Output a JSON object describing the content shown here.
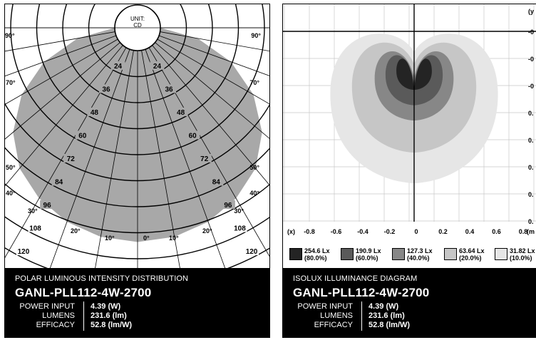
{
  "polar": {
    "unit_line1": "UNIT:",
    "unit_line2": "CD",
    "angle_labels": [
      "90°",
      "90°",
      "70°",
      "70°",
      "50°",
      "50°",
      "40°",
      "40°",
      "30°",
      "30°",
      "20°",
      "20°",
      "10°",
      "10°",
      "0°"
    ],
    "ring_labels": [
      "24",
      "36",
      "48",
      "60",
      "72",
      "84",
      "96",
      "108",
      "120"
    ],
    "chart_data": {
      "type": "polar",
      "unit": "CD",
      "rings": [
        24,
        36,
        48,
        60,
        72,
        84,
        96,
        108,
        120
      ],
      "angles_deg": [
        0,
        10,
        20,
        30,
        40,
        50,
        60,
        70,
        80,
        90
      ],
      "intensity_cd": [
        100,
        99,
        96,
        91,
        84,
        73,
        58,
        40,
        20,
        0
      ],
      "fill_color": "#a8a8a8"
    },
    "info": {
      "type": "POLAR LUMINOUS INTENSITY DISTRIBUTION",
      "model": "GANL-PLL112-4W-2700",
      "power_label": "POWER INPUT",
      "power_value": "4.39 (W)",
      "lumens_label": "LUMENS",
      "lumens_value": "231.6 (lm)",
      "efficacy_label": "EFFICACY",
      "efficacy_value": "52.8 (lm/W)"
    }
  },
  "isolux": {
    "chart_data": {
      "type": "heatmap",
      "x_label": "(x)",
      "y_label": "(y",
      "x_unit": "(m",
      "x_ticks": [
        "-0.8",
        "-0.6",
        "-0.4",
        "-0.2",
        "0",
        "0.2",
        "0.4",
        "0.6",
        "0.8"
      ],
      "y_ticks": [
        "-0",
        "-0",
        "-0",
        "0.",
        "0.",
        "0.",
        "0.",
        "0."
      ],
      "levels": [
        {
          "lux": "31.82 Lx",
          "pct": "(10.0%)",
          "color": "#e6e6e6",
          "radius": 0.85
        },
        {
          "lux": "63.64 Lx",
          "pct": "(20.0%)",
          "color": "#c6c6c6",
          "radius": 0.63
        },
        {
          "lux": "127.3 Lx",
          "pct": "(40.0%)",
          "color": "#878787",
          "radius": 0.4
        },
        {
          "lux": "190.9  Lx",
          "pct": "(60.0%)",
          "color": "#5a5a5a",
          "radius": 0.29
        },
        {
          "lux": "254.6 Lx",
          "pct": "(80.0%)",
          "color": "#242424",
          "radius": 0.18
        }
      ]
    },
    "legend": [
      {
        "lux": "254.6 Lx",
        "pct": "(80.0%)",
        "color": "#242424"
      },
      {
        "lux": "190.9  Lx",
        "pct": "(60.0%)",
        "color": "#5a5a5a"
      },
      {
        "lux": "127.3 Lx",
        "pct": "(40.0%)",
        "color": "#878787"
      },
      {
        "lux": "63.64 Lx",
        "pct": "(20.0%)",
        "color": "#c6c6c6"
      },
      {
        "lux": "31.82 Lx",
        "pct": "(10.0%)",
        "color": "#e6e6e6"
      }
    ],
    "info": {
      "type": "ISOLUX ILLUMINANCE DIAGRAM",
      "model": "GANL-PLL112-4W-2700",
      "power_label": "POWER INPUT",
      "power_value": "4.39 (W)",
      "lumens_label": "LUMENS",
      "lumens_value": "231.6 (lm)",
      "efficacy_label": "EFFICACY",
      "efficacy_value": "52.8 (lm/W)"
    }
  }
}
